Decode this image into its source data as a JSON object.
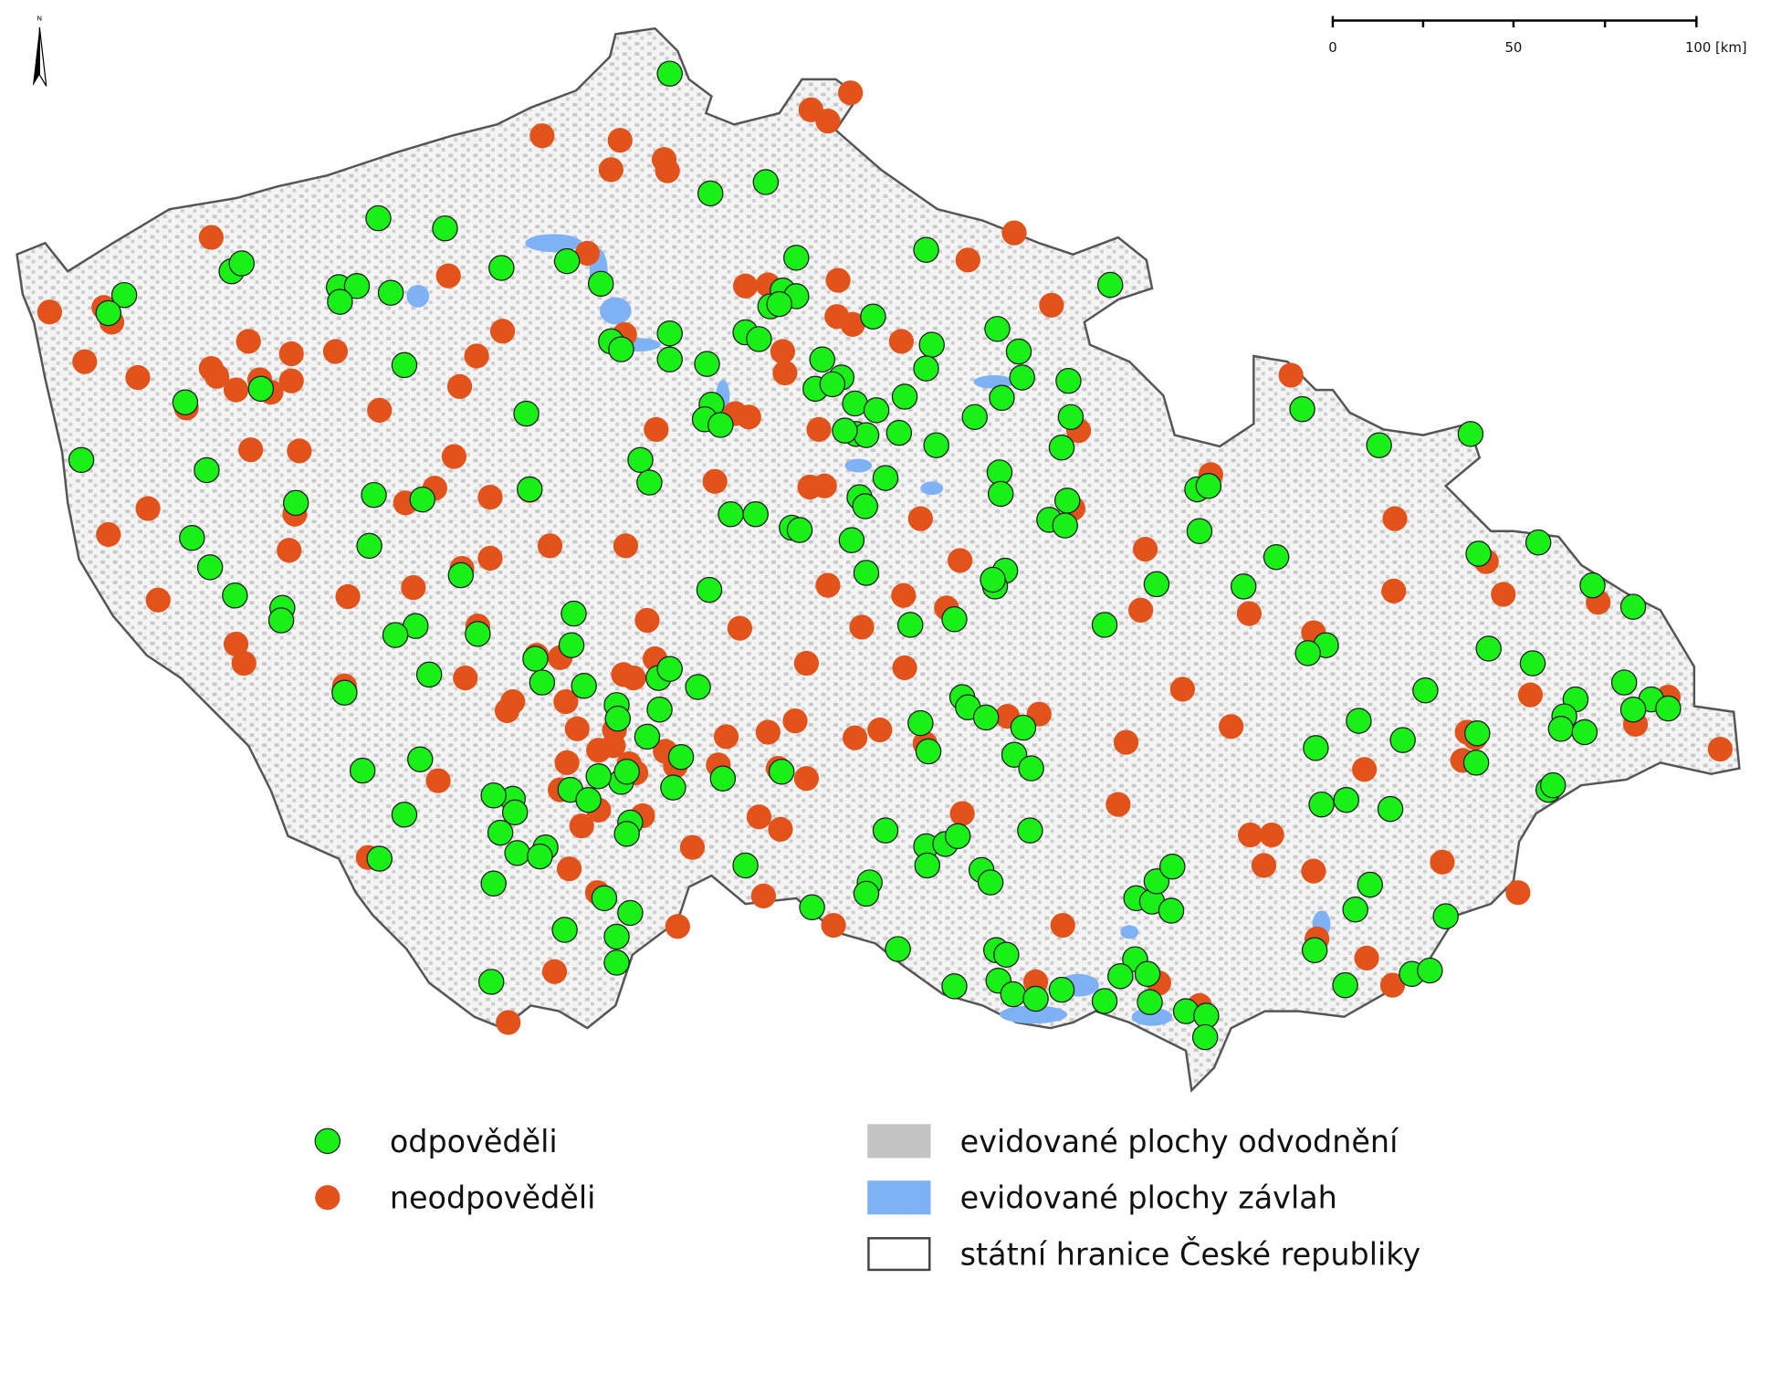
{
  "north_arrow": "N",
  "scale_bar": {
    "labels": [
      "0",
      "50",
      "100 [km]"
    ]
  },
  "legend": {
    "items": [
      {
        "label": "odpověděli"
      },
      {
        "label": "neodpověděli"
      },
      {
        "label": "evidované plochy odvodnění"
      },
      {
        "label": "evidované plochy závlah"
      },
      {
        "label": "státní hranice České republiky"
      }
    ]
  }
}
